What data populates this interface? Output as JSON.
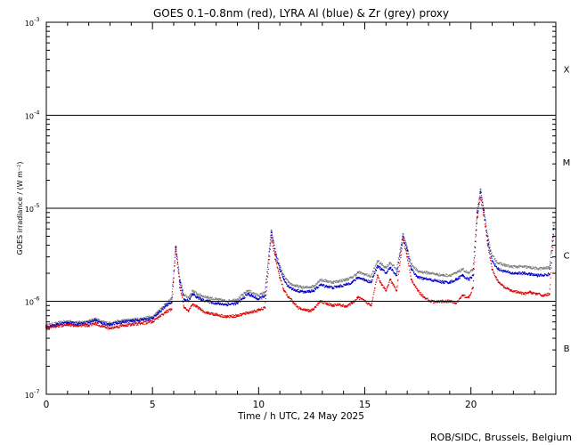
{
  "chart_data": {
    "type": "scatter",
    "title": "GOES 0.1–0.8nm (red), LYRA Al (blue) & Zr (grey) proxy",
    "xlabel": "Time / h UTC, 24 May 2025",
    "ylabel": "GOES irradiance / (W m⁻²)",
    "credit": "ROB/SIDC, Brussels, Belgium",
    "xlim": [
      0,
      24
    ],
    "ylim": [
      1e-07,
      0.001
    ],
    "yscale": "log",
    "x_ticks": [
      0,
      5,
      10,
      15,
      20
    ],
    "x_tick_labels": [
      "0",
      "5",
      "10",
      "15",
      "20"
    ],
    "y_ticks": [
      1e-07,
      1e-06,
      1e-05,
      0.0001,
      0.001
    ],
    "y_tick_labels": [
      {
        "base": "10",
        "exp": "-7"
      },
      {
        "base": "10",
        "exp": "-6"
      },
      {
        "base": "10",
        "exp": "-5"
      },
      {
        "base": "10",
        "exp": "-4"
      },
      {
        "base": "10",
        "exp": "-3"
      }
    ],
    "class_lines": [
      1e-06,
      1e-05,
      0.0001
    ],
    "class_labels": [
      {
        "label": "B",
        "y": 3.16e-07
      },
      {
        "label": "C",
        "y": 3.16e-06
      },
      {
        "label": "M",
        "y": 3.16e-05
      },
      {
        "label": "X",
        "y": 0.000316
      }
    ],
    "grid": false,
    "colors": {
      "red": "#dd0000",
      "blue": "#0000cc",
      "grey": "#808080",
      "axis": "#000000"
    },
    "series": [
      {
        "color": "red",
        "x": [
          0,
          0.5,
          1,
          1.5,
          2,
          2.3,
          2.6,
          3,
          3.3,
          3.6,
          4,
          4.5,
          5,
          5.3,
          5.6,
          5.9,
          6.1,
          6.3,
          6.5,
          6.7,
          6.9,
          7.1,
          7.3,
          7.6,
          8,
          8.5,
          9,
          9.5,
          10,
          10.3,
          10.6,
          10.8,
          11,
          11.2,
          11.4,
          11.6,
          11.8,
          12,
          12.2,
          12.4,
          12.6,
          12.9,
          13.2,
          13.5,
          13.8,
          14.1,
          14.4,
          14.7,
          15,
          15.3,
          15.6,
          15.8,
          16,
          16.2,
          16.5,
          16.8,
          17,
          17.2,
          17.5,
          17.8,
          18.1,
          18.4,
          18.7,
          19,
          19.3,
          19.6,
          19.9,
          20.1,
          20.3,
          20.45,
          20.6,
          20.8,
          21,
          21.3,
          21.6,
          21.9,
          22.2,
          22.5,
          22.8,
          23.1,
          23.4,
          23.7,
          23.9
        ],
        "y": [
          5.2e-07,
          5.4e-07,
          5.6e-07,
          5.4e-07,
          5.5e-07,
          5.8e-07,
          5.4e-07,
          5.1e-07,
          5.3e-07,
          5.5e-07,
          5.6e-07,
          5.8e-07,
          6e-07,
          6.8e-07,
          7.6e-07,
          8.2e-07,
          3.6e-06,
          1.4e-06,
          8.5e-07,
          7.8e-07,
          9.2e-07,
          8.8e-07,
          8e-07,
          7.5e-07,
          7.2e-07,
          6.8e-07,
          7e-07,
          7.5e-07,
          8e-07,
          8.5e-07,
          4.8e-06,
          2.8e-06,
          1.8e-06,
          1.3e-06,
          1.1e-06,
          1e-06,
          8.8e-07,
          8.2e-07,
          8e-07,
          7.9e-07,
          8.2e-07,
          1e-06,
          9.5e-07,
          9e-07,
          9.2e-07,
          8.8e-07,
          9.5e-07,
          1.1e-06,
          1e-06,
          9e-07,
          1.9e-06,
          1.5e-06,
          1.3e-06,
          1.7e-06,
          1.3e-06,
          4.6e-06,
          3e-06,
          1.7e-06,
          1.3e-06,
          1.1e-06,
          1e-06,
          9.8e-07,
          1e-06,
          1e-06,
          9.5e-07,
          1.15e-06,
          1.1e-06,
          1.4e-06,
          8e-06,
          1.3e-05,
          8.5e-06,
          4e-06,
          2.2e-06,
          1.6e-06,
          1.4e-06,
          1.3e-06,
          1.25e-06,
          1.2e-06,
          1.25e-06,
          1.2e-06,
          1.15e-06,
          1.2e-06,
          5e-06
        ]
      },
      {
        "color": "blue",
        "x": [
          0,
          0.5,
          1,
          1.5,
          2,
          2.3,
          2.6,
          3,
          3.3,
          3.6,
          4,
          4.5,
          5,
          5.3,
          5.6,
          5.9,
          6.1,
          6.3,
          6.5,
          6.7,
          6.9,
          7.1,
          7.3,
          7.6,
          8,
          8.5,
          9,
          9.5,
          10,
          10.3,
          10.6,
          10.8,
          11,
          11.2,
          11.4,
          11.6,
          11.8,
          12,
          12.2,
          12.4,
          12.6,
          12.9,
          13.2,
          13.5,
          13.8,
          14.1,
          14.4,
          14.7,
          15,
          15.3,
          15.6,
          15.8,
          16,
          16.2,
          16.5,
          16.8,
          17,
          17.2,
          17.5,
          17.8,
          18.1,
          18.4,
          18.7,
          19,
          19.3,
          19.6,
          19.9,
          20.1,
          20.3,
          20.45,
          20.6,
          20.8,
          21,
          21.3,
          21.6,
          21.9,
          22.2,
          22.5,
          22.8,
          23.1,
          23.4,
          23.7,
          23.9
        ],
        "y": [
          5.3e-07,
          5.6e-07,
          5.9e-07,
          5.7e-07,
          5.9e-07,
          6.3e-07,
          5.8e-07,
          5.6e-07,
          5.8e-07,
          6e-07,
          6.1e-07,
          6.3e-07,
          6.5e-07,
          7.5e-07,
          8.8e-07,
          9.8e-07,
          3.8e-06,
          1.6e-06,
          1.05e-06,
          1e-06,
          1.2e-06,
          1.1e-06,
          1.05e-06,
          1e-06,
          9.5e-07,
          9.2e-07,
          9.5e-07,
          1.2e-06,
          1.05e-06,
          1.15e-06,
          5.5e-06,
          3.2e-06,
          2.2e-06,
          1.7e-06,
          1.45e-06,
          1.35e-06,
          1.3e-06,
          1.28e-06,
          1.25e-06,
          1.28e-06,
          1.3e-06,
          1.5e-06,
          1.45e-06,
          1.4e-06,
          1.45e-06,
          1.5e-06,
          1.6e-06,
          1.8e-06,
          1.7e-06,
          1.6e-06,
          2.4e-06,
          2.2e-06,
          2e-06,
          2.3e-06,
          1.9e-06,
          5e-06,
          3.5e-06,
          2.2e-06,
          1.8e-06,
          1.75e-06,
          1.7e-06,
          1.65e-06,
          1.6e-06,
          1.6e-06,
          1.7e-06,
          1.9e-06,
          1.7e-06,
          1.9e-06,
          9e-06,
          1.5e-05,
          9.5e-06,
          4.5e-06,
          2.7e-06,
          2.2e-06,
          2.1e-06,
          2e-06,
          2e-06,
          2e-06,
          1.95e-06,
          1.9e-06,
          1.9e-06,
          1.95e-06,
          6e-06
        ]
      },
      {
        "color": "grey",
        "x": [
          0,
          0.5,
          1,
          1.5,
          2,
          2.3,
          2.6,
          3,
          3.3,
          3.6,
          4,
          4.5,
          5,
          5.3,
          5.6,
          5.9,
          6.1,
          6.3,
          6.5,
          6.7,
          6.9,
          7.1,
          7.3,
          7.6,
          8,
          8.5,
          9,
          9.5,
          10,
          10.3,
          10.6,
          10.8,
          11,
          11.2,
          11.4,
          11.6,
          11.8,
          12,
          12.2,
          12.4,
          12.6,
          12.9,
          13.2,
          13.5,
          13.8,
          14.1,
          14.4,
          14.7,
          15,
          15.3,
          15.6,
          15.8,
          16,
          16.2,
          16.5,
          16.8,
          17,
          17.2,
          17.5,
          17.8,
          18.1,
          18.4,
          18.7,
          19,
          19.3,
          19.6,
          19.9,
          20.1,
          20.3,
          20.45,
          20.6,
          20.8,
          21,
          21.3,
          21.6,
          21.9,
          22.2,
          22.5,
          22.8,
          23.1,
          23.4,
          23.7,
          23.9
        ],
        "y": [
          5.5e-07,
          5.8e-07,
          6.1e-07,
          5.9e-07,
          6.1e-07,
          6.5e-07,
          6e-07,
          5.8e-07,
          6e-07,
          6.2e-07,
          6.3e-07,
          6.5e-07,
          6.8e-07,
          7.9e-07,
          9.3e-07,
          1.05e-06,
          3.9e-06,
          1.7e-06,
          1.15e-06,
          1.1e-06,
          1.3e-06,
          1.2e-06,
          1.15e-06,
          1.1e-06,
          1.05e-06,
          1e-06,
          1.05e-06,
          1.3e-06,
          1.15e-06,
          1.25e-06,
          5.8e-06,
          3.4e-06,
          2.4e-06,
          1.85e-06,
          1.6e-06,
          1.5e-06,
          1.45e-06,
          1.42e-06,
          1.4e-06,
          1.42e-06,
          1.45e-06,
          1.7e-06,
          1.65e-06,
          1.6e-06,
          1.65e-06,
          1.7e-06,
          1.8e-06,
          2.05e-06,
          1.95e-06,
          1.85e-06,
          2.7e-06,
          2.5e-06,
          2.3e-06,
          2.6e-06,
          2.2e-06,
          5.3e-06,
          3.8e-06,
          2.5e-06,
          2.1e-06,
          2.05e-06,
          2e-06,
          1.95e-06,
          1.9e-06,
          1.9e-06,
          2e-06,
          2.2e-06,
          2e-06,
          2.2e-06,
          9.5e-06,
          1.6e-05,
          1e-05,
          5e-06,
          3.1e-06,
          2.55e-06,
          2.45e-06,
          2.35e-06,
          2.35e-06,
          2.35e-06,
          2.3e-06,
          2.25e-06,
          2.25e-06,
          2.3e-06,
          6.5e-06
        ]
      }
    ]
  }
}
